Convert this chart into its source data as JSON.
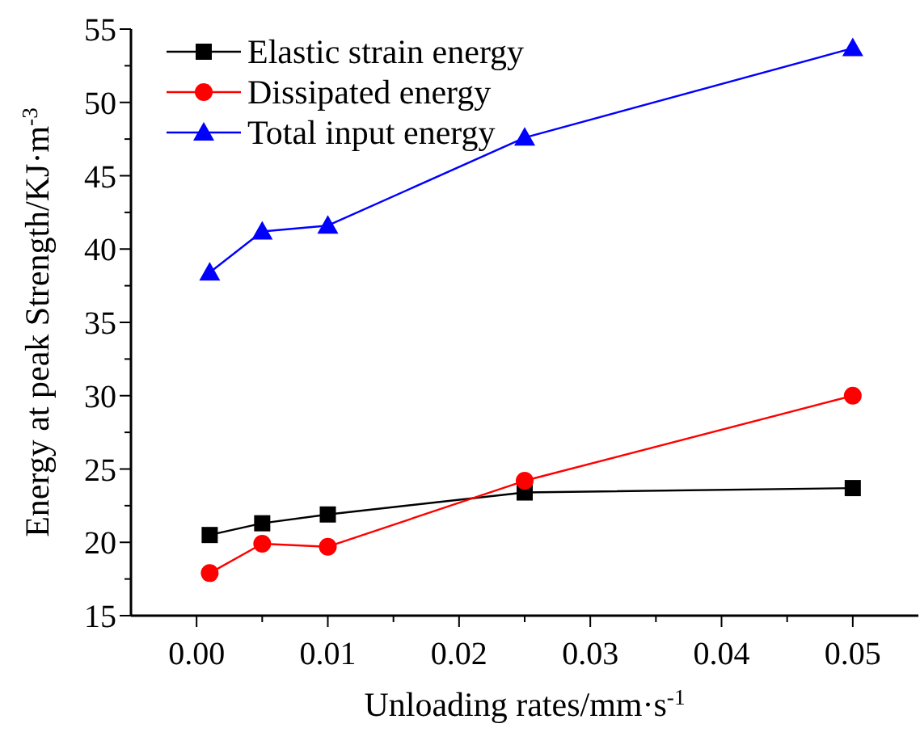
{
  "chart_data": {
    "type": "line",
    "xlabel": "Unloading rates/mm·s$^{-1}$",
    "ylabel": "Energy at peak Strength/KJ·m$^{-3}$",
    "x": [
      0.001,
      0.005,
      0.01,
      0.025,
      0.05
    ],
    "series": [
      {
        "name": "Elastic strain energy",
        "color": "#000000",
        "marker": "square",
        "values": [
          20.5,
          21.3,
          21.9,
          23.4,
          23.7
        ]
      },
      {
        "name": "Dissipated energy",
        "color": "#ff0000",
        "marker": "circle",
        "values": [
          17.9,
          19.9,
          19.7,
          24.2,
          30.0
        ]
      },
      {
        "name": "Total input energy",
        "color": "#0000ff",
        "marker": "triangle",
        "values": [
          38.4,
          41.2,
          41.6,
          47.6,
          53.7
        ]
      }
    ],
    "xlim": [
      -0.005,
      0.055
    ],
    "xticks": [
      {
        "value": 0,
        "label": "0.00"
      },
      {
        "value": 0.01,
        "label": "0.01"
      },
      {
        "value": 0.02,
        "label": "0.02"
      },
      {
        "value": 0.03,
        "label": "0.03"
      },
      {
        "value": 0.04,
        "label": "0.04"
      },
      {
        "value": 0.05,
        "label": "0.05"
      }
    ],
    "ylim": [
      15,
      55
    ],
    "yticks": [
      15,
      20,
      25,
      30,
      35,
      40,
      45,
      50,
      55
    ],
    "legend": "top left",
    "grid": false
  }
}
